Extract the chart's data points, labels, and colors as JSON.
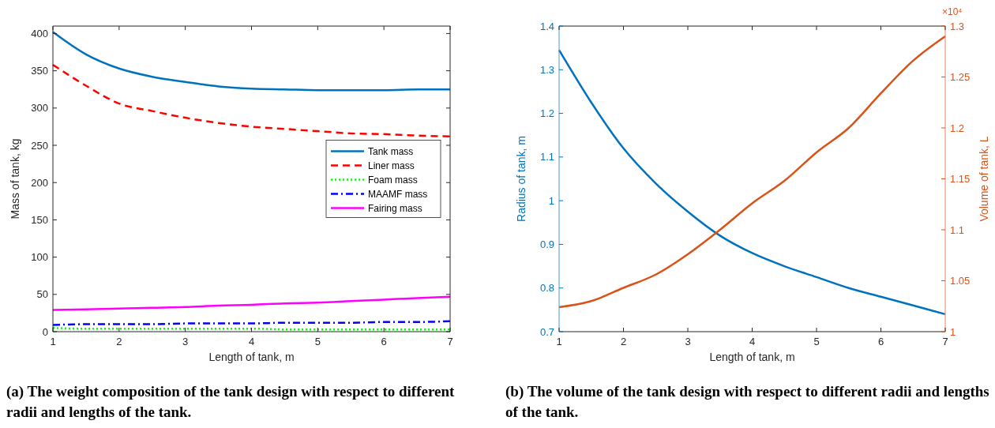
{
  "chart_data": [
    {
      "type": "line",
      "title": "(a) The weight composition of the tank design with respect to different radii and lengths of the tank.",
      "xlabel": "Length of tank, m",
      "ylabel": "Mass of tank, kg",
      "x": [
        1,
        1.5,
        2,
        2.5,
        3,
        3.5,
        4,
        4.5,
        5,
        5.5,
        6,
        6.5,
        7
      ],
      "xlim": [
        1,
        7
      ],
      "xticks": [
        1,
        2,
        3,
        4,
        5,
        6,
        7
      ],
      "ylim": [
        0,
        410
      ],
      "yticks": [
        0,
        50,
        100,
        150,
        200,
        250,
        300,
        350,
        400
      ],
      "grid": false,
      "legend": "right",
      "marker": "none",
      "series": [
        {
          "name": "Tank mass",
          "color": "#0072bd",
          "line_style": "solid",
          "values": [
            402,
            372,
            353,
            342,
            335,
            329,
            326,
            325,
            324,
            324,
            324,
            325,
            325
          ]
        },
        {
          "name": "Liner mass",
          "color": "#ff0000",
          "line_style": "dashed",
          "values": [
            358,
            330,
            306,
            296,
            287,
            280,
            275,
            272,
            269,
            266,
            265,
            263,
            262
          ]
        },
        {
          "name": "Foam mass",
          "color": "#00ff00",
          "line_style": "dotted",
          "values": [
            5,
            4,
            4,
            4,
            4,
            4,
            4,
            3,
            3,
            3,
            3,
            3,
            3
          ]
        },
        {
          "name": "MAAMF mass",
          "color": "#0000ff",
          "line_style": "dashdot",
          "values": [
            9,
            10,
            10,
            10,
            11,
            11,
            11,
            12,
            12,
            12,
            13,
            13,
            14
          ]
        },
        {
          "name": "Fairing mass",
          "color": "#ff00ff",
          "line_style": "solid",
          "values": [
            29,
            30,
            31,
            32,
            33,
            35,
            36,
            38,
            39,
            41,
            43,
            45,
            47
          ]
        }
      ]
    },
    {
      "type": "line",
      "title": "(b) The volume of the tank design with respect to different radii and lengths of the tank.",
      "xlabel": "Length of tank, m",
      "ylabel": "Radius of tank, m",
      "y2label": "Volume of tank, L",
      "annotations": [
        "×10⁴"
      ],
      "x": [
        1,
        1.5,
        2,
        2.5,
        3,
        3.5,
        4,
        4.5,
        5,
        5.5,
        6,
        6.5,
        7
      ],
      "xlim": [
        1,
        7
      ],
      "xticks": [
        1,
        2,
        3,
        4,
        5,
        6,
        7
      ],
      "ylim": [
        0.7,
        1.4
      ],
      "yticks": [
        0.7,
        0.8,
        0.9,
        1,
        1.1,
        1.2,
        1.3,
        1.4
      ],
      "y2lim": [
        1,
        1.3
      ],
      "y2ticks": [
        1,
        1.05,
        1.1,
        1.15,
        1.2,
        1.25,
        1.3
      ],
      "grid": false,
      "legend": false,
      "marker": "none",
      "series": [
        {
          "color": "#0072bd",
          "line_style": "solid",
          "values": [
            1.345,
            1.225,
            1.12,
            1.04,
            0.975,
            0.92,
            0.88,
            0.85,
            0.825,
            0.8,
            0.78,
            0.76,
            0.74
          ]
        },
        {
          "color": "#d95319",
          "line_style": "solid",
          "axis": "y2",
          "values": [
            1.024,
            1.03,
            1.043,
            1.056,
            1.076,
            1.1,
            1.126,
            1.148,
            1.176,
            1.2,
            1.234,
            1.266,
            1.29
          ]
        }
      ]
    }
  ]
}
